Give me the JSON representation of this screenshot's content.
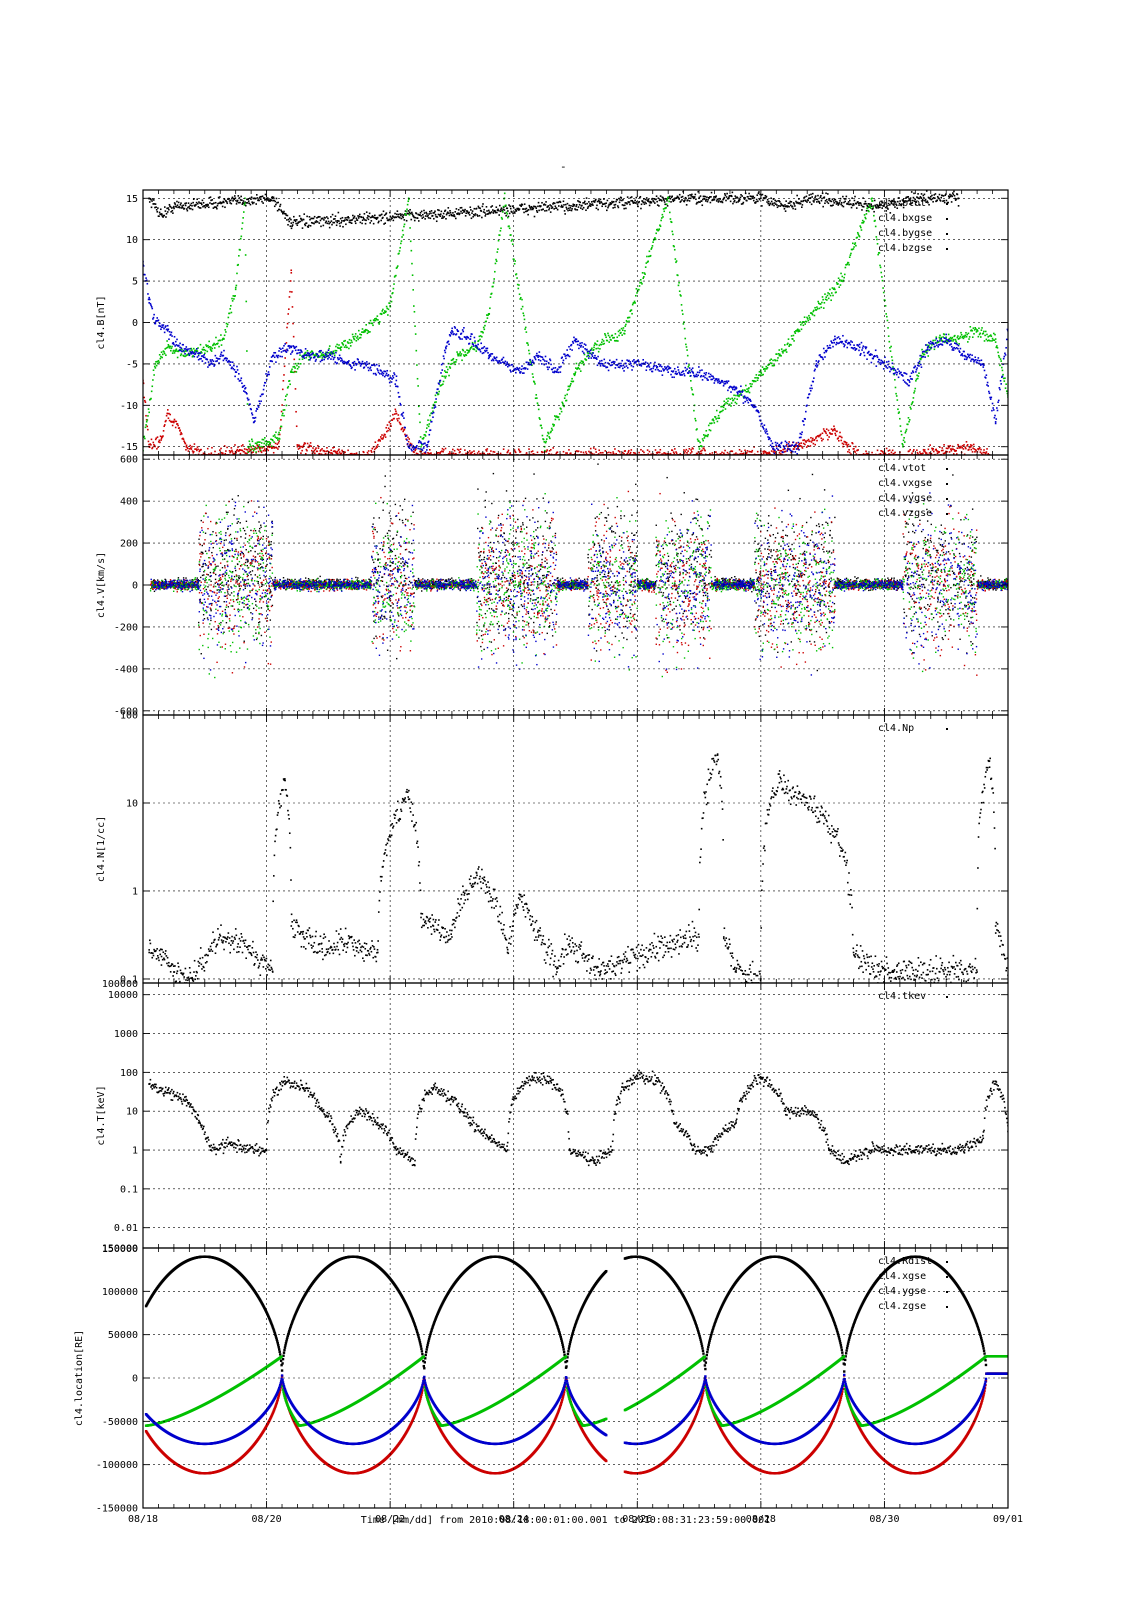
{
  "figure": {
    "title": "-",
    "time_range_label": "Time [mm/dd]  from 2010:08:18:00:01:00.001  to  2010:08:31:23:59:00.001"
  },
  "colors": {
    "black": "#000000",
    "red": "#cc0000",
    "green": "#00c000",
    "blue": "#0000cc"
  },
  "chart_data": [
    {
      "type": "scatter",
      "ylabel": "cl4.B[nT]",
      "xlabels": [
        "08/18",
        "08/20",
        "08/22",
        "08/24",
        "08/26",
        "08/28",
        "08/30",
        "09/01"
      ],
      "xlim": [
        0,
        14
      ],
      "ylim": [
        -16,
        16
      ],
      "yticks": [
        15,
        10,
        5,
        0,
        -5,
        -10,
        -15
      ],
      "ytick_labels": [
        "15",
        "10",
        "5",
        "0",
        "-5",
        "-10",
        "-15"
      ],
      "grid": true,
      "legend_position": "top-right",
      "series": [
        {
          "name": "cl4.btot",
          "color": "black",
          "x": [
            0.1,
            0.3,
            0.5,
            2.1,
            2.4,
            9.0,
            10.0,
            10.4,
            10.8,
            11.9,
            12.6,
            13.2
          ],
          "y": [
            15,
            13,
            14,
            15,
            12,
            15,
            15,
            14,
            15,
            14,
            15,
            15
          ]
        },
        {
          "name": "cl4.bxgse",
          "color": "red",
          "x": [
            0.0,
            0.1,
            0.3,
            0.4,
            0.6,
            0.7,
            1.0,
            2.2,
            2.4,
            2.5,
            3.3,
            3.7,
            4.1,
            4.4,
            6.7,
            9.0,
            10.0,
            10.6,
            11.2,
            11.4,
            11.6,
            12.5,
            13.4,
            13.7
          ],
          "y": [
            -7,
            -15,
            -14,
            -11,
            -13,
            -15,
            -16,
            -15,
            6,
            -15,
            -16,
            -16,
            -11,
            -16,
            -16,
            -16,
            -16,
            -15,
            -13,
            -15,
            -16,
            -16,
            -15,
            -16
          ]
        },
        {
          "name": "cl4.bygse",
          "color": "green",
          "x": [
            0.0,
            0.2,
            0.4,
            0.7,
            1.1,
            1.3,
            1.5,
            1.65,
            1.7,
            2.2,
            2.4,
            2.6,
            2.9,
            3.2,
            3.6,
            4.0,
            4.3,
            4.5,
            4.7,
            4.9,
            5.1,
            5.4,
            5.6,
            5.85,
            6.5,
            6.8,
            7.0,
            7.3,
            7.8,
            8.5,
            9.0,
            9.4,
            9.8,
            10.0,
            10.3,
            10.6,
            11.3,
            11.8,
            12.3,
            12.6,
            12.9,
            13.2,
            13.5,
            13.8,
            14.0
          ],
          "y": [
            -15,
            -5,
            -3,
            -4,
            -3,
            -2,
            4,
            15,
            -15,
            -14,
            -6,
            -4,
            -4,
            -3,
            -1,
            2,
            15,
            -15,
            -10,
            -6,
            -4,
            -3,
            1,
            15,
            -15,
            -10,
            -6,
            -3,
            -1,
            15,
            -15,
            -10,
            -8,
            -6,
            -4,
            -1,
            5,
            15,
            -15,
            -4,
            -2,
            -2,
            -1,
            -2,
            -9
          ]
        },
        {
          "name": "cl4.bzgse",
          "color": "blue",
          "x": [
            0.0,
            0.1,
            0.2,
            0.4,
            0.6,
            0.9,
            1.1,
            1.3,
            1.5,
            1.65,
            1.8,
            2.1,
            2.4,
            2.7,
            3.0,
            3.3,
            3.6,
            4.1,
            4.3,
            4.6,
            4.9,
            5.0,
            5.3,
            5.6,
            5.9,
            6.1,
            6.4,
            6.7,
            7.0,
            7.4,
            8.1,
            8.5,
            8.9,
            9.3,
            9.6,
            9.9,
            10.2,
            10.6,
            10.9,
            11.2,
            11.6,
            12.4,
            12.7,
            13.0,
            13.3,
            13.6,
            13.8,
            14.0
          ],
          "y": [
            7,
            3,
            0,
            -1,
            -3,
            -4,
            -5,
            -4,
            -6,
            -8,
            -12,
            -4,
            -3,
            -4,
            -4,
            -5,
            -5,
            -7,
            -15,
            -15,
            -3,
            -1,
            -2,
            -4,
            -5,
            -6,
            -4,
            -6,
            -2,
            -5,
            -5,
            -6,
            -6,
            -7,
            -8,
            -10,
            -15,
            -15,
            -5,
            -2,
            -3,
            -7,
            -3,
            -2,
            -4,
            -5,
            -12,
            -1
          ]
        }
      ]
    },
    {
      "type": "scatter",
      "ylabel": "cl4.V[km/s]",
      "xlabels": [
        "08/18",
        "08/20",
        "08/22",
        "08/24",
        "08/26",
        "08/28",
        "08/30",
        "09/01"
      ],
      "xlim": [
        0,
        14
      ],
      "ylim": [
        -620,
        620
      ],
      "yticks": [
        600,
        400,
        200,
        0,
        -200,
        -400,
        -600
      ],
      "ytick_labels": [
        "600",
        "400",
        "200",
        "0",
        "-200",
        "-400",
        "-600"
      ],
      "grid": true,
      "legend_position": "top-right",
      "legend_entries": [
        "cl4.vtot",
        "cl4.vxgse",
        "cl4.vygse",
        "cl4.vzgse"
      ],
      "series_colors": [
        "black",
        "red",
        "green",
        "blue"
      ],
      "active_intervals": [
        [
          0.9,
          2.1
        ],
        [
          3.7,
          4.4
        ],
        [
          5.4,
          6.7
        ],
        [
          7.2,
          8.0
        ],
        [
          8.3,
          9.2
        ],
        [
          9.9,
          11.2
        ],
        [
          12.3,
          13.5
        ]
      ],
      "quiet_noise_amplitude": 50,
      "active_noise_amplitude": 600
    },
    {
      "type": "scatter",
      "ylabel": "cl4.N[1/cc]",
      "xlabels": [
        "08/18",
        "08/20",
        "08/22",
        "08/24",
        "08/26",
        "08/28",
        "08/30",
        "09/01"
      ],
      "xlim": [
        0,
        14
      ],
      "ylim": [
        0.09,
        100
      ],
      "yscale": "log",
      "yticks": [
        100,
        10,
        1,
        0.1
      ],
      "ytick_labels": [
        "100",
        "10",
        "1",
        "0.1"
      ],
      "grid": true,
      "legend_position": "top-right",
      "series": [
        {
          "name": "cl4.Np",
          "color": "black",
          "x": [
            0.1,
            0.3,
            0.5,
            0.8,
            1.3,
            2.1,
            2.3,
            2.4,
            2.6,
            2.9,
            3.3,
            3.8,
            4.3,
            4.5,
            4.7,
            5.0,
            5.2,
            5.4,
            5.6,
            5.9,
            6.1,
            6.4,
            6.7,
            6.9,
            7.4,
            9.0,
            9.3,
            9.4,
            9.6,
            10.0,
            10.3,
            11.5,
            11.9,
            12.2,
            13.5,
            13.7,
            13.8,
            14.0
          ],
          "x_note": "",
          "y": [
            0.2,
            0.18,
            0.12,
            0.1,
            0.3,
            0.12,
            18,
            0.4,
            0.3,
            0.22,
            0.25,
            0.2,
            11,
            0.5,
            0.4,
            0.3,
            0.9,
            1.6,
            1.0,
            0.2,
            0.8,
            0.3,
            0.12,
            0.25,
            0.12,
            0.3,
            35,
            0.3,
            0.12,
            0.1,
            17,
            0.2,
            0.12,
            0.12,
            0.12,
            30,
            0.4,
            0.11
          ]
        }
      ]
    },
    {
      "type": "scatter",
      "ylabel": "cl4.T[keV]",
      "xlabels": [
        "08/18",
        "08/20",
        "08/22",
        "08/24",
        "08/26",
        "08/28",
        "08/30",
        "09/01"
      ],
      "xlim": [
        0,
        14
      ],
      "ylim": [
        0.003,
        20000
      ],
      "yscale": "log",
      "yticks": [
        10000,
        1000,
        100,
        10,
        1,
        0.1,
        0.01
      ],
      "ytick_labels": [
        "10000",
        "1000",
        "100",
        "10",
        "1",
        "0.1",
        "0.01"
      ],
      "top_tick_label": "100000",
      "grid": true,
      "legend_position": "top-right",
      "series": [
        {
          "name": "cl4.tkev",
          "color": "black",
          "x": [
            0.1,
            0.4,
            0.7,
            0.9,
            1.1,
            1.4,
            1.7,
            2.0,
            2.3,
            2.6,
            2.9,
            3.2,
            3.5,
            3.8,
            4.1,
            4.4,
            4.7,
            5.0,
            5.3,
            5.6,
            5.9,
            6.3,
            6.6,
            6.9,
            7.3,
            7.6,
            8.0,
            8.3,
            8.6,
            8.9,
            9.2,
            9.6,
            10.0,
            10.4,
            10.8,
            11.1,
            11.4,
            11.8,
            12.1,
            12.5,
            12.9,
            13.3,
            13.6,
            13.8,
            14.0
          ],
          "y": [
            50,
            30,
            20,
            5,
            1,
            1.5,
            1,
            1,
            60,
            40,
            10,
            0.5,
            10,
            5,
            1,
            0.4,
            40,
            20,
            5,
            2,
            1,
            80,
            60,
            1,
            0.5,
            1,
            80,
            60,
            5,
            1,
            1,
            5,
            70,
            10,
            10,
            1,
            0.5,
            1,
            1,
            1,
            1,
            1,
            2,
            50,
            3
          ]
        }
      ]
    },
    {
      "type": "line",
      "ylabel": "cl4.location[RE]",
      "xlabels": [
        "08/18",
        "08/20",
        "08/22",
        "08/24",
        "08/26",
        "08/28",
        "08/30",
        "09/01"
      ],
      "xlim": [
        0,
        14
      ],
      "ylim": [
        -150000,
        150000
      ],
      "yticks": [
        150000,
        100000,
        50000,
        0,
        -50000,
        -100000,
        -150000
      ],
      "ytick_labels": [
        "150000",
        "100000",
        "50000",
        "0",
        "-50000",
        "-100000",
        "-150000"
      ],
      "top_tick_label": "150000",
      "grid": true,
      "legend_position": "top-right",
      "data_gap": [
        7.5,
        7.8
      ],
      "periapsis_days": [
        -0.25,
        2.25,
        4.55,
        6.85,
        9.1,
        11.35,
        13.65
      ],
      "series": [
        {
          "name": "cl4.Rdist",
          "color": "black",
          "apogee": 140000,
          "perigee": 5000
        },
        {
          "name": "cl4.xgse",
          "color": "red",
          "apogee": -110000,
          "perigee": 5000
        },
        {
          "name": "cl4.ygse",
          "color": "green",
          "peak": 25000,
          "trough": -55000
        },
        {
          "name": "cl4.zgse",
          "color": "blue",
          "apogee": -76000,
          "perigee": 5000
        }
      ]
    }
  ]
}
